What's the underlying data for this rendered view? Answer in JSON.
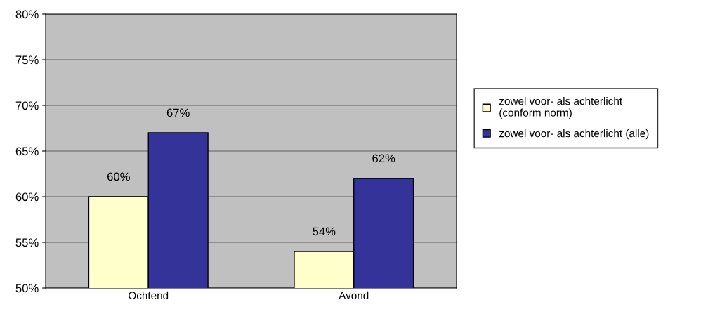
{
  "chart_data": {
    "type": "bar",
    "categories": [
      "Ochtend",
      "Avond"
    ],
    "series": [
      {
        "name": "zowel voor- als achterlicht (conform norm)",
        "color": "#ffffcc",
        "values": [
          60,
          54
        ]
      },
      {
        "name": "zowel voor- als achterlicht (alle)",
        "color": "#333399",
        "values": [
          67,
          62
        ]
      }
    ],
    "ylim": [
      50,
      80
    ],
    "yticks": [
      {
        "value": 50,
        "label": "50%"
      },
      {
        "value": 55,
        "label": "55%"
      },
      {
        "value": 60,
        "label": "60%"
      },
      {
        "value": 65,
        "label": "65%"
      },
      {
        "value": 70,
        "label": "70%"
      },
      {
        "value": 75,
        "label": "75%"
      },
      {
        "value": 80,
        "label": "80%"
      }
    ],
    "value_labels": [
      [
        "60%",
        "54%"
      ],
      [
        "67%",
        "62%"
      ]
    ],
    "grid": "y",
    "legend": "right"
  }
}
